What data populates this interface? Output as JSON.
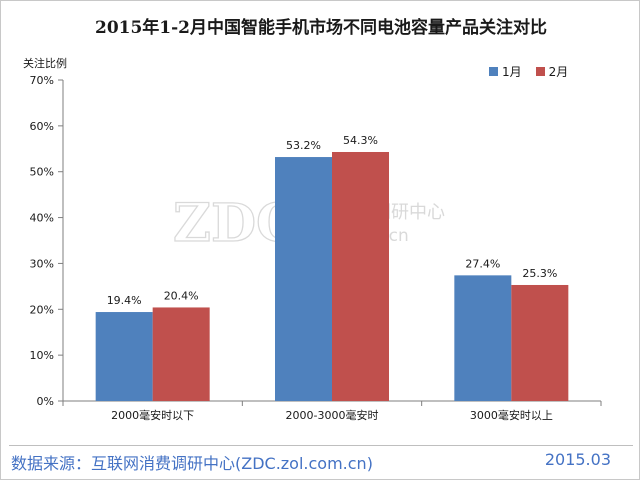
{
  "chart_data": {
    "type": "bar",
    "title": "2015年1-2月中国智能手机市场不同电池容量产品关注对比",
    "ylabel": "关注比例",
    "xlabel": "",
    "categories": [
      "2000毫安时以下",
      "2000-3000毫安时",
      "3000毫安时以上"
    ],
    "series": [
      {
        "name": "1月",
        "values": [
          19.4,
          53.2,
          27.4
        ],
        "labels": [
          "19.4%",
          "53.2%",
          "27.4%"
        ],
        "color": "#4f81bd"
      },
      {
        "name": "2月",
        "values": [
          20.4,
          54.3,
          25.3
        ],
        "labels": [
          "20.4%",
          "54.3%",
          "25.3%"
        ],
        "color": "#c0504d"
      }
    ],
    "ylim": [
      0,
      70
    ],
    "yticks": [
      0,
      10,
      20,
      30,
      40,
      50,
      60,
      70
    ],
    "ytick_labels": [
      "0%",
      "10%",
      "20%",
      "30%",
      "40%",
      "50%",
      "60%",
      "70%"
    ],
    "grid": false,
    "legend": "top-right"
  },
  "watermark": {
    "logo": "ZDC",
    "name": "互联网消费调研中心",
    "url": "zdc.zol.com.cn"
  },
  "footer": {
    "source": "数据来源：互联网消费调研中心(ZDC.zol.com.cn)",
    "date": "2015.03"
  }
}
